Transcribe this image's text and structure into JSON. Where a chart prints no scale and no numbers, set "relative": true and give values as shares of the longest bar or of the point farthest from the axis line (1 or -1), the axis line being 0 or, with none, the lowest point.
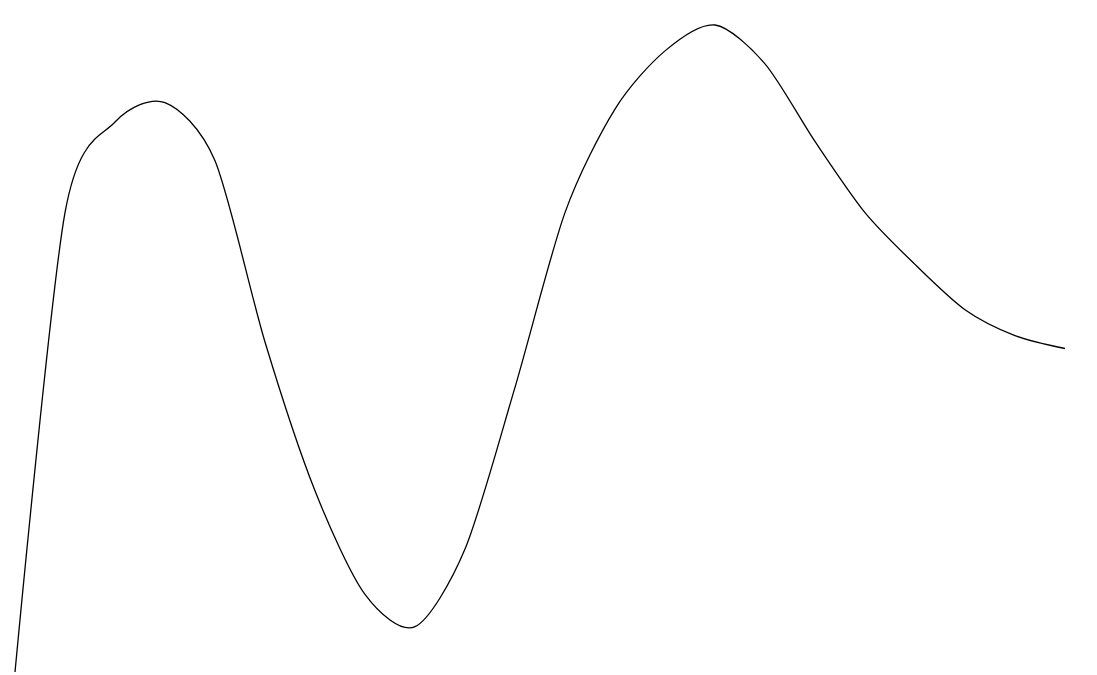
{
  "chart_data": {
    "type": "line",
    "relative": true,
    "color": "#000000",
    "marker": "none",
    "line_style": "solid",
    "categories": [
      null,
      null,
      null,
      null,
      null,
      null,
      null,
      null,
      null,
      null,
      null,
      null,
      null,
      null,
      null,
      null,
      null,
      null,
      null,
      null,
      null,
      null
    ],
    "values": [
      0,
      0.71,
      0.85,
      0.88,
      0.79,
      0.51,
      0.28,
      0.12,
      0.07,
      0.19,
      0.44,
      0.71,
      0.87,
      0.96,
      1.0,
      0.94,
      0.82,
      0.71,
      0.63,
      0.56,
      0.52,
      0.5
    ]
  }
}
